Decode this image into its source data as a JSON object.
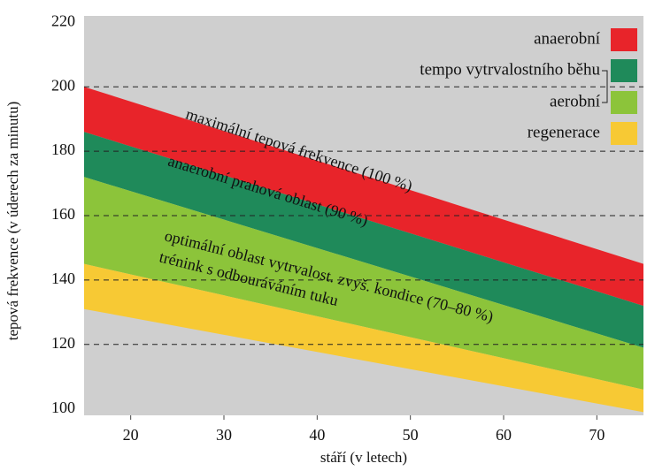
{
  "chart_data": {
    "type": "range-area",
    "x_label": "stáří (v letech)",
    "y_label": "tepová frekvence (v úderech za minutu)",
    "x": [
      15,
      75
    ],
    "xlim": [
      15,
      75
    ],
    "xticks": [
      20,
      30,
      40,
      50,
      60,
      70
    ],
    "ylim": [
      98,
      222
    ],
    "yticks": [
      100,
      120,
      140,
      160,
      180,
      200,
      220
    ],
    "grid": true,
    "legend": "upper right",
    "series": [
      {
        "name": "anaerobní",
        "color": "#e8242a",
        "upper": [
          200,
          145
        ],
        "lower": [
          186,
          132
        ]
      },
      {
        "name": "tempo vytrvalostního běhu",
        "color": "#1f8a5a",
        "upper": [
          186,
          132
        ],
        "lower": [
          172,
          119
        ]
      },
      {
        "name": "aerobní",
        "color": "#8cc43a",
        "upper": [
          172,
          119
        ],
        "lower": [
          145,
          106
        ]
      },
      {
        "name": "regenerace",
        "color": "#f7c934",
        "upper": [
          145,
          106
        ],
        "lower": [
          131,
          99
        ]
      }
    ],
    "annotations": [
      "maximální tepová frekvence (100 %)",
      "anaerobní prahová oblast (90 %)",
      "optimální oblast vytrvalost. zvyš. kondice (70–80 %)",
      "trénink s odbouráváním tuku"
    ]
  }
}
